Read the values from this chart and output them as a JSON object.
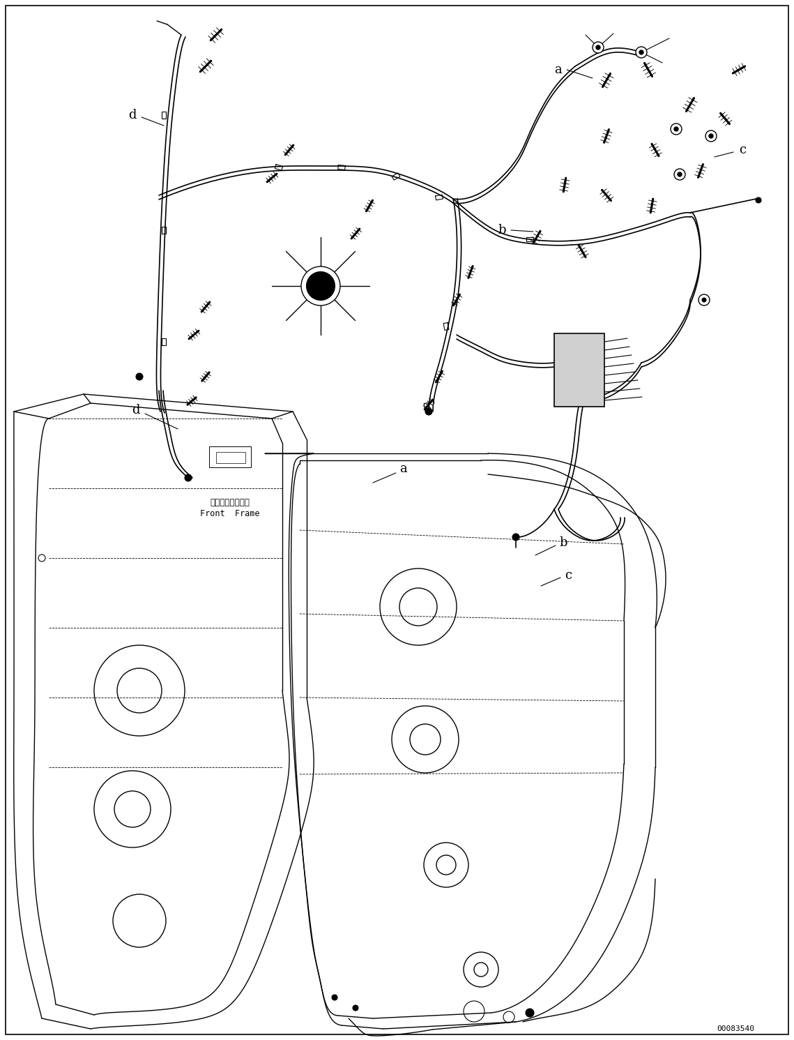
{
  "figure_width": 11.39,
  "figure_height": 14.91,
  "dpi": 100,
  "background_color": "#ffffff",
  "drawing_color": "#000000",
  "part_number": "00083540",
  "front_frame_jp": "フロントフレーム",
  "front_frame_en": "Front  Frame",
  "label_a1": "a",
  "label_b1": "b",
  "label_c1": "c",
  "label_d1": "d",
  "label_a2": "a",
  "label_b2": "b",
  "label_c2": "c",
  "label_d2": "d"
}
